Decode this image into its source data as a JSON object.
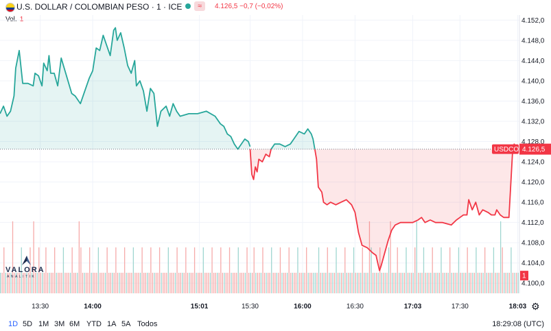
{
  "header": {
    "title": "U.S. DOLLAR / COLOMBIAN PESO · 1 · ICE",
    "badge": "≈",
    "quote": "4.126,5 −0,7 (−0,02%)",
    "vol_label": "Vol.",
    "vol_value": "1"
  },
  "colors": {
    "up": "#26a69a",
    "down": "#f23645",
    "grid": "#f0f3fa",
    "accent": "#2962ff"
  },
  "chart_data": {
    "type": "area",
    "symbol_tag": "USDCOP",
    "last_price_label": "4.126,5",
    "reference_price": 4126.5,
    "volume_tag": "1",
    "ylim": [
      4098,
      4153
    ],
    "y_ticks": [
      4100.0,
      4104.0,
      4108.0,
      4112.0,
      4116.0,
      4120.0,
      4124.0,
      4128.0,
      4132.0,
      4136.0,
      4140.0,
      4144.0,
      4148.0,
      4152.0
    ],
    "y_tick_labels": [
      "4.100,0",
      "4.104,0",
      "4.108,0",
      "4.112,0",
      "4.116,0",
      "4.120,0",
      "4.124,0",
      "4.128,0",
      "4.132,0",
      "4.136,0",
      "4.140,0",
      "4.144,0",
      "4.148,0",
      "4.152,0"
    ],
    "x_range": [
      "13:07",
      "18:04"
    ],
    "x_ticks": [
      {
        "label": "13:30",
        "time": "13:30",
        "bold": false
      },
      {
        "label": "14:00",
        "time": "14:00",
        "bold": true
      },
      {
        "label": "15:01",
        "time": "15:01",
        "bold": true
      },
      {
        "label": "15:30",
        "time": "15:30",
        "bold": false
      },
      {
        "label": "16:00",
        "time": "16:00",
        "bold": true
      },
      {
        "label": "16:30",
        "time": "16:30",
        "bold": false
      },
      {
        "label": "17:03",
        "time": "17:03",
        "bold": true
      },
      {
        "label": "17:30",
        "time": "17:30",
        "bold": false
      },
      {
        "label": "18:03",
        "time": "18:03",
        "bold": true
      }
    ],
    "series": [
      {
        "points": [
          [
            "13:07",
            4133.5
          ],
          [
            "13:09",
            4135.0
          ],
          [
            "13:11",
            4133.0
          ],
          [
            "13:13",
            4134.0
          ],
          [
            "13:15",
            4137.0
          ],
          [
            "13:16",
            4142.5
          ],
          [
            "13:18",
            4146.0
          ],
          [
            "13:20",
            4139.5
          ],
          [
            "13:23",
            4139.5
          ],
          [
            "13:26",
            4139.0
          ],
          [
            "13:27",
            4141.5
          ],
          [
            "13:29",
            4141.0
          ],
          [
            "13:31",
            4139.0
          ],
          [
            "13:32",
            4143.5
          ],
          [
            "13:34",
            4142.0
          ],
          [
            "13:35",
            4145.0
          ],
          [
            "13:36",
            4141.5
          ],
          [
            "13:38",
            4141.5
          ],
          [
            "13:40",
            4139.0
          ],
          [
            "13:42",
            4144.5
          ],
          [
            "13:45",
            4141.0
          ],
          [
            "13:48",
            4137.5
          ],
          [
            "13:50",
            4137.0
          ],
          [
            "13:53",
            4135.5
          ],
          [
            "13:55",
            4137.5
          ],
          [
            "13:58",
            4140.5
          ],
          [
            "14:00",
            4142.0
          ],
          [
            "14:02",
            4146.5
          ],
          [
            "14:04",
            4146.0
          ],
          [
            "14:06",
            4149.0
          ],
          [
            "14:08",
            4147.0
          ],
          [
            "14:10",
            4145.0
          ],
          [
            "14:12",
            4150.0
          ],
          [
            "14:13",
            4150.5
          ],
          [
            "14:14",
            4148.0
          ],
          [
            "14:16",
            4149.5
          ],
          [
            "14:18",
            4146.5
          ],
          [
            "14:20",
            4143.0
          ],
          [
            "14:22",
            4141.5
          ],
          [
            "14:24",
            4144.0
          ],
          [
            "14:25",
            4139.0
          ],
          [
            "14:27",
            4140.0
          ],
          [
            "14:29",
            4138.0
          ],
          [
            "14:31",
            4134.0
          ],
          [
            "14:33",
            4138.5
          ],
          [
            "14:35",
            4137.5
          ],
          [
            "14:37",
            4131.0
          ],
          [
            "14:39",
            4134.0
          ],
          [
            "14:42",
            4135.0
          ],
          [
            "14:44",
            4133.0
          ],
          [
            "14:46",
            4135.5
          ],
          [
            "14:48",
            4134.0
          ],
          [
            "14:50",
            4133.0
          ],
          [
            "14:55",
            4133.5
          ],
          [
            "15:00",
            4133.5
          ],
          [
            "15:05",
            4134.0
          ],
          [
            "15:10",
            4133.0
          ],
          [
            "15:13",
            4131.5
          ],
          [
            "15:15",
            4131.0
          ],
          [
            "15:17",
            4129.5
          ],
          [
            "15:19",
            4129.0
          ],
          [
            "15:21",
            4127.5
          ],
          [
            "15:23",
            4126.5
          ],
          [
            "15:25",
            4127.5
          ],
          [
            "15:27",
            4128.5
          ],
          [
            "15:29",
            4128.0
          ],
          [
            "15:30",
            4127.0
          ]
        ]
      },
      {
        "points": [
          [
            "15:30",
            4126.5
          ],
          [
            "15:31",
            4121.5
          ],
          [
            "15:32",
            4120.5
          ],
          [
            "15:33",
            4123.0
          ],
          [
            "15:34",
            4122.0
          ],
          [
            "15:35",
            4124.5
          ],
          [
            "15:37",
            4124.0
          ],
          [
            "15:39",
            4125.5
          ],
          [
            "15:41",
            4125.0
          ],
          [
            "15:42",
            4126.5
          ]
        ]
      },
      {
        "points": [
          [
            "15:42",
            4126.5
          ],
          [
            "15:44",
            4127.5
          ],
          [
            "15:47",
            4127.5
          ],
          [
            "15:50",
            4127.0
          ],
          [
            "15:53",
            4127.5
          ],
          [
            "15:55",
            4128.5
          ],
          [
            "15:58",
            4130.0
          ],
          [
            "16:01",
            4129.5
          ],
          [
            "16:03",
            4130.5
          ],
          [
            "16:05",
            4129.5
          ],
          [
            "16:06",
            4128.5
          ],
          [
            "16:07",
            4126.5
          ]
        ]
      },
      {
        "points": [
          [
            "16:07",
            4126.5
          ],
          [
            "16:08",
            4124.5
          ],
          [
            "16:09",
            4119.0
          ],
          [
            "16:11",
            4118.0
          ],
          [
            "16:12",
            4116.0
          ],
          [
            "16:14",
            4115.5
          ],
          [
            "16:16",
            4116.0
          ],
          [
            "16:19",
            4115.5
          ],
          [
            "16:22",
            4116.0
          ],
          [
            "16:25",
            4116.5
          ],
          [
            "16:28",
            4115.5
          ],
          [
            "16:30",
            4114.0
          ],
          [
            "16:32",
            4110.0
          ],
          [
            "16:34",
            4107.5
          ],
          [
            "16:37",
            4107.0
          ],
          [
            "16:40",
            4106.0
          ],
          [
            "16:42",
            4105.5
          ],
          [
            "16:43",
            4104.0
          ],
          [
            "16:44",
            4102.5
          ],
          [
            "16:45",
            4103.5
          ],
          [
            "16:47",
            4106.0
          ],
          [
            "16:49",
            4108.5
          ],
          [
            "16:51",
            4110.5
          ],
          [
            "16:53",
            4111.5
          ],
          [
            "16:56",
            4112.0
          ],
          [
            "17:00",
            4112.0
          ],
          [
            "17:03",
            4112.0
          ],
          [
            "17:06",
            4112.5
          ],
          [
            "17:08",
            4113.0
          ],
          [
            "17:10",
            4112.0
          ],
          [
            "17:13",
            4112.5
          ],
          [
            "17:16",
            4112.0
          ],
          [
            "17:20",
            4112.0
          ],
          [
            "17:25",
            4111.5
          ],
          [
            "17:28",
            4112.5
          ],
          [
            "17:30",
            4113.0
          ],
          [
            "17:32",
            4113.5
          ],
          [
            "17:34",
            4113.5
          ],
          [
            "17:35",
            4116.5
          ],
          [
            "17:37",
            4114.5
          ],
          [
            "17:39",
            4116.0
          ],
          [
            "17:41",
            4113.5
          ],
          [
            "17:43",
            4114.5
          ],
          [
            "17:46",
            4114.0
          ],
          [
            "17:48",
            4113.5
          ],
          [
            "17:50",
            4113.5
          ],
          [
            "17:51",
            4114.5
          ],
          [
            "17:53",
            4113.5
          ],
          [
            "17:55",
            4113.0
          ],
          [
            "17:58",
            4113.0
          ],
          [
            "18:00",
            4125.5
          ],
          [
            "18:01",
            4127.5
          ],
          [
            "18:02",
            4126.5
          ]
        ]
      }
    ],
    "volume": {
      "ylim": [
        0,
        1.2
      ],
      "pattern": [
        {
          "start": "13:07",
          "end": "13:31",
          "teal_every": 3,
          "tall_at": [
            "13:14",
            "13:26"
          ]
        },
        {
          "start": "13:31",
          "end": "15:30",
          "teal_every": 4,
          "tall_at": [
            "13:52"
          ]
        },
        {
          "start": "15:30",
          "end": "16:07",
          "teal_every": 3,
          "tall_at": []
        },
        {
          "start": "16:07",
          "end": "18:04",
          "teal_every": 2,
          "tall_at": [
            "16:38",
            "16:50",
            "17:05",
            "17:53"
          ]
        }
      ]
    }
  },
  "footer": {
    "ranges": [
      "1D",
      "5D",
      "1M",
      "3M",
      "6M",
      "YTD",
      "1A",
      "5A",
      "Todos"
    ],
    "active_range": "1D",
    "clock": "18:29:08 (UTC)"
  },
  "logo": {
    "name": "VALORA",
    "sub": "ANALITIK"
  }
}
